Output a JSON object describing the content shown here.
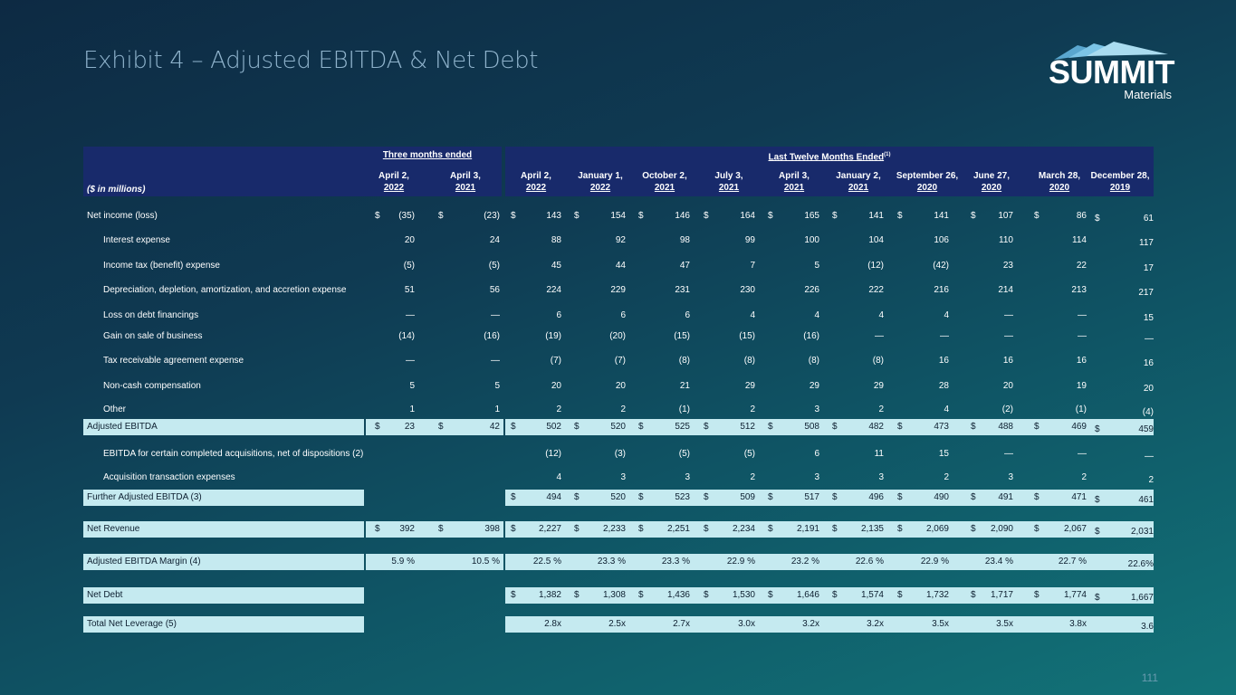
{
  "title": "Exhibit 4 – Adjusted EBITDA & Net Debt",
  "logo": {
    "word": "SUMMIT",
    "sub": "Materials"
  },
  "page_number": "111",
  "table": {
    "units_label": "($ in millions)",
    "group_three_months": "Three months ended",
    "group_ltm": "Last Twelve Months Ended",
    "group_ltm_note": "(1)",
    "columns": [
      {
        "l1": "April 2,",
        "l2": "2022"
      },
      {
        "l1": "April 3,",
        "l2": "2021"
      },
      {
        "l1": "April 2,",
        "l2": "2022"
      },
      {
        "l1": "January 1,",
        "l2": "2022"
      },
      {
        "l1": "October 2,",
        "l2": "2021"
      },
      {
        "l1": "July 3,",
        "l2": "2021"
      },
      {
        "l1": "April 3,",
        "l2": "2021"
      },
      {
        "l1": "January 2,",
        "l2": "2021"
      },
      {
        "l1": "September 26,",
        "l2": "2020"
      },
      {
        "l1": "June 27,",
        "l2": "2020"
      },
      {
        "l1": "March 28,",
        "l2": "2020"
      },
      {
        "l1": "December 28,",
        "l2": "2019"
      }
    ],
    "rows": [
      {
        "label": "Net income (loss)",
        "indent": false,
        "hl": false,
        "dollar": true,
        "values": [
          "(35)",
          "(23)",
          "143",
          "154",
          "146",
          "164",
          "165",
          "141",
          "141",
          "107",
          "86",
          "61"
        ]
      },
      {
        "label": "Interest expense",
        "indent": true,
        "hl": false,
        "dollar": false,
        "values": [
          "20",
          "24",
          "88",
          "92",
          "98",
          "99",
          "100",
          "104",
          "106",
          "110",
          "114",
          "117"
        ]
      },
      {
        "label": "Income tax (benefit) expense",
        "indent": true,
        "hl": false,
        "dollar": false,
        "values": [
          "(5)",
          "(5)",
          "45",
          "44",
          "47",
          "7",
          "5",
          "(12)",
          "(42)",
          "23",
          "22",
          "17"
        ]
      },
      {
        "label": "Depreciation, depletion, amortization, and accretion expense",
        "indent": true,
        "hl": false,
        "dollar": false,
        "values": [
          "51",
          "56",
          "224",
          "229",
          "231",
          "230",
          "226",
          "222",
          "216",
          "214",
          "213",
          "217"
        ]
      },
      {
        "label": "Loss on debt financings",
        "indent": true,
        "hl": false,
        "dollar": false,
        "values": [
          "—",
          "—",
          "6",
          "6",
          "6",
          "4",
          "4",
          "4",
          "4",
          "—",
          "—",
          "15"
        ]
      },
      {
        "label": "Gain on sale of business",
        "indent": true,
        "hl": false,
        "dollar": false,
        "values": [
          "(14)",
          "(16)",
          "(19)",
          "(20)",
          "(15)",
          "(15)",
          "(16)",
          "—",
          "—",
          "—",
          "—",
          "—"
        ]
      },
      {
        "label": "Tax receivable agreement expense",
        "indent": true,
        "hl": false,
        "dollar": false,
        "values": [
          "—",
          "—",
          "(7)",
          "(7)",
          "(8)",
          "(8)",
          "(8)",
          "(8)",
          "16",
          "16",
          "16",
          "16"
        ]
      },
      {
        "label": "Non-cash compensation",
        "indent": true,
        "hl": false,
        "dollar": false,
        "values": [
          "5",
          "5",
          "20",
          "20",
          "21",
          "29",
          "29",
          "29",
          "28",
          "20",
          "19",
          "20"
        ]
      },
      {
        "label": "Other",
        "indent": true,
        "hl": false,
        "dollar": false,
        "values": [
          "1",
          "1",
          "2",
          "2",
          "(1)",
          "2",
          "3",
          "2",
          "4",
          "(2)",
          "(1)",
          "(4)"
        ]
      },
      {
        "label": "Adjusted EBITDA",
        "indent": false,
        "hl": true,
        "dollar": true,
        "values": [
          "23",
          "42",
          "502",
          "520",
          "525",
          "512",
          "508",
          "482",
          "473",
          "488",
          "469",
          "459"
        ]
      },
      {
        "label": "EBITDA for certain completed acquisitions, net of dispositions (2)",
        "indent": true,
        "hl": false,
        "dollar": false,
        "values": [
          "",
          "",
          "(12)",
          "(3)",
          "(5)",
          "(5)",
          "6",
          "11",
          "15",
          "—",
          "—",
          "—"
        ]
      },
      {
        "label": "Acquisition transaction expenses",
        "indent": true,
        "hl": false,
        "dollar": false,
        "values": [
          "",
          "",
          "4",
          "3",
          "3",
          "2",
          "3",
          "3",
          "2",
          "3",
          "2",
          "2"
        ]
      },
      {
        "label": "Further Adjusted EBITDA (3)",
        "indent": false,
        "hl": true,
        "dollar": true,
        "values": [
          "",
          "",
          "494",
          "520",
          "523",
          "509",
          "517",
          "496",
          "490",
          "491",
          "471",
          "461"
        ]
      },
      {
        "label": "Net Revenue",
        "indent": false,
        "hl": true,
        "dollar": true,
        "values": [
          "392",
          "398",
          "2,227",
          "2,233",
          "2,251",
          "2,234",
          "2,191",
          "2,135",
          "2,069",
          "2,090",
          "2,067",
          "2,031"
        ]
      },
      {
        "label": "Adjusted EBITDA Margin (4)",
        "indent": false,
        "hl": true,
        "dollar": false,
        "values": [
          "5.9 %",
          "10.5 %",
          "22.5 %",
          "23.3 %",
          "23.3 %",
          "22.9 %",
          "23.2 %",
          "22.6 %",
          "22.9 %",
          "23.4 %",
          "22.7 %",
          "22.6%"
        ]
      },
      {
        "label": "Net Debt",
        "indent": false,
        "hl": true,
        "dollar": true,
        "values": [
          "",
          "",
          "1,382",
          "1,308",
          "1,436",
          "1,530",
          "1,646",
          "1,574",
          "1,732",
          "1,717",
          "1,774",
          "1,667"
        ]
      },
      {
        "label": "Total Net Leverage (5)",
        "indent": false,
        "hl": true,
        "dollar": false,
        "values": [
          "",
          "",
          "2.8x",
          "2.5x",
          "2.7x",
          "3.0x",
          "3.2x",
          "3.2x",
          "3.5x",
          "3.5x",
          "3.8x",
          "3.6"
        ]
      }
    ],
    "dollar_sign": "$",
    "colors": {
      "header_band": "#182a6b",
      "highlight": "#c5eaf0",
      "title": "#8fb3cc"
    }
  }
}
